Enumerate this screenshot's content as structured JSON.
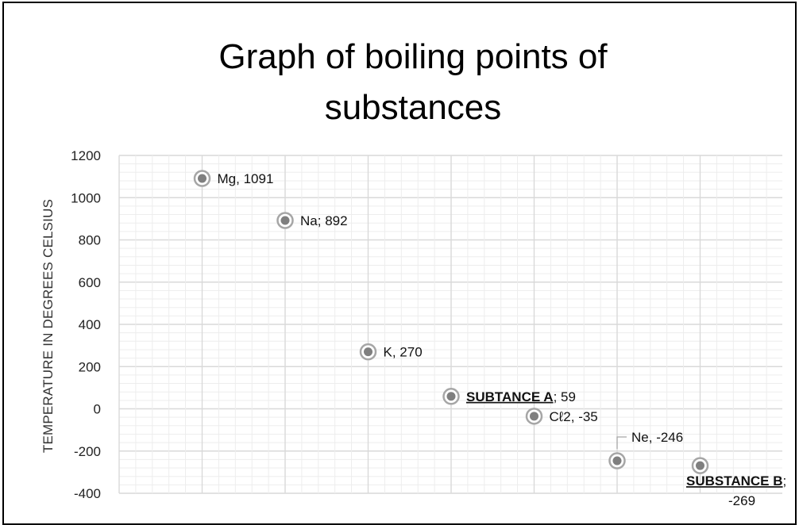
{
  "chart_data": {
    "type": "scatter",
    "title_lines": [
      "Graph of boiling points of",
      "substances"
    ],
    "ylabel": "TEMPERATURE IN DEGREES CELSIUS",
    "xlabel": "",
    "ylim": [
      -400,
      1200
    ],
    "y_ticks": [
      "1200",
      "1000",
      "800",
      "600",
      "400",
      "200",
      "0",
      "-200",
      "-400"
    ],
    "grid": true,
    "points": [
      {
        "x": 1,
        "y": 1091,
        "label_name": "Mg",
        "label_sep": ", ",
        "label_value": "1091"
      },
      {
        "x": 2,
        "y": 892,
        "label_name": "Na",
        "label_sep": "; ",
        "label_value": "892"
      },
      {
        "x": 3,
        "y": 270,
        "label_name": "K",
        "label_sep": ", ",
        "label_value": "270"
      },
      {
        "x": 4,
        "y": 59,
        "label_name": "SUBTANCE A",
        "label_sep": "; ",
        "label_value": "59"
      },
      {
        "x": 5,
        "y": -35,
        "label_name": "Cℓ2",
        "label_sep": ", ",
        "label_value": "-35"
      },
      {
        "x": 6,
        "y": -246,
        "label_name": "Ne",
        "label_sep": ", ",
        "label_value": "-246"
      },
      {
        "x": 7,
        "y": -269,
        "label_name": "SUBSTANCE B",
        "label_sep": ";",
        "label_value": "-269"
      }
    ],
    "colors": {
      "marker_fill": "#7f7f7f",
      "marker_ring": "#a6a6a6",
      "grid_major": "#d9d9d9",
      "grid_minor": "#ededed"
    }
  }
}
